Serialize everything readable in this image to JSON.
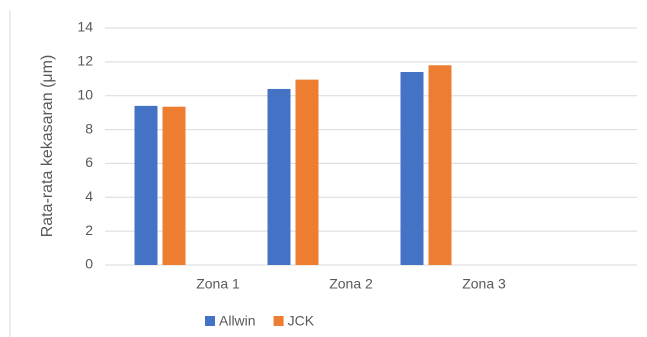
{
  "chart_data": {
    "type": "bar",
    "y_label": "Rata-rata kekasaran (μm)",
    "categories": [
      "Zona 1",
      "Zona 2",
      "Zona 3",
      null
    ],
    "series": [
      {
        "name": "Allwin",
        "color": "#4472c4",
        "values": [
          9.4,
          10.4,
          11.4,
          null
        ]
      },
      {
        "name": "JCK",
        "color": "#ed7d31",
        "values": [
          9.35,
          10.95,
          11.8,
          null
        ]
      }
    ],
    "ylim": [
      0,
      14
    ],
    "yticks": [
      0,
      2,
      4,
      6,
      8,
      10,
      12,
      14
    ],
    "grid": true,
    "legend": "bottom"
  }
}
